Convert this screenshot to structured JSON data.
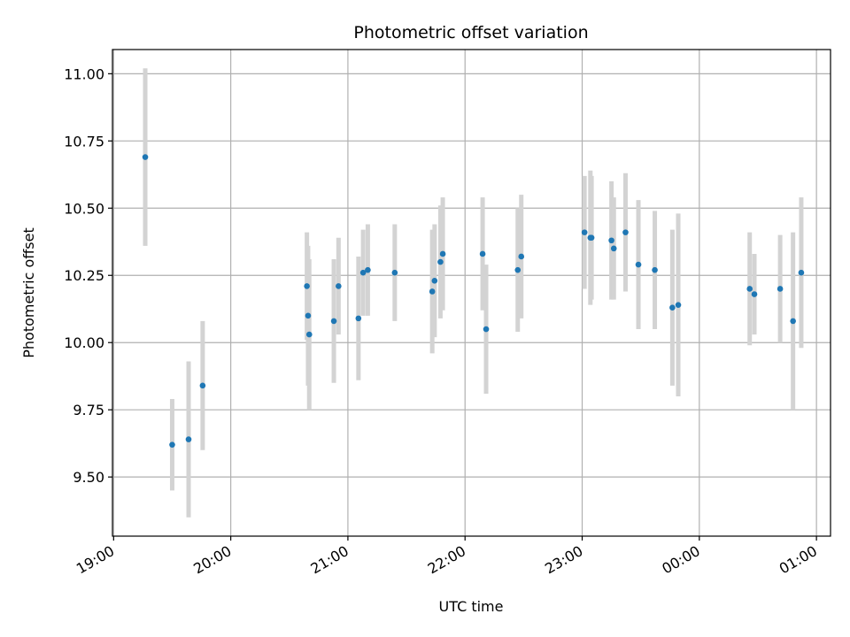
{
  "chart_data": {
    "type": "scatter",
    "title": "Photometric offset variation",
    "xlabel": "UTC time",
    "ylabel": "Photometric offset",
    "x_unit": "UTC time (hours)",
    "xlim": [
      18.99,
      25.12
    ],
    "ylim": [
      9.28,
      11.09
    ],
    "grid": true,
    "x_ticks": [
      {
        "value": 19,
        "label": "19:00"
      },
      {
        "value": 20,
        "label": "20:00"
      },
      {
        "value": 21,
        "label": "21:00"
      },
      {
        "value": 22,
        "label": "22:00"
      },
      {
        "value": 23,
        "label": "23:00"
      },
      {
        "value": 24,
        "label": "00:00"
      },
      {
        "value": 25,
        "label": "01:00"
      }
    ],
    "y_ticks": [
      {
        "value": 9.5,
        "label": "9.50"
      },
      {
        "value": 9.75,
        "label": "9.75"
      },
      {
        "value": 10.0,
        "label": "10.00"
      },
      {
        "value": 10.25,
        "label": "10.25"
      },
      {
        "value": 10.5,
        "label": "10.50"
      },
      {
        "value": 10.75,
        "label": "10.75"
      },
      {
        "value": 11.0,
        "label": "11.00"
      }
    ],
    "colors": {
      "points": "#1f77b4",
      "error_bars": "#d3d3d3",
      "grid": "#b0b0b0"
    },
    "series": [
      {
        "points": [
          {
            "x": 19.27,
            "y": 10.69,
            "err": 0.33
          },
          {
            "x": 19.5,
            "y": 9.62,
            "err": 0.17
          },
          {
            "x": 19.64,
            "y": 9.64,
            "err": 0.29
          },
          {
            "x": 19.76,
            "y": 9.84,
            "err": 0.24
          },
          {
            "x": 20.65,
            "y": 10.21,
            "err": 0.2
          },
          {
            "x": 20.66,
            "y": 10.1,
            "err": 0.26
          },
          {
            "x": 20.67,
            "y": 10.03,
            "err": 0.28
          },
          {
            "x": 20.88,
            "y": 10.08,
            "err": 0.23
          },
          {
            "x": 20.92,
            "y": 10.21,
            "err": 0.18
          },
          {
            "x": 21.09,
            "y": 10.09,
            "err": 0.23
          },
          {
            "x": 21.13,
            "y": 10.26,
            "err": 0.16
          },
          {
            "x": 21.17,
            "y": 10.27,
            "err": 0.17
          },
          {
            "x": 21.4,
            "y": 10.26,
            "err": 0.18
          },
          {
            "x": 21.72,
            "y": 10.19,
            "err": 0.23
          },
          {
            "x": 21.74,
            "y": 10.23,
            "err": 0.21
          },
          {
            "x": 21.79,
            "y": 10.3,
            "err": 0.21
          },
          {
            "x": 21.81,
            "y": 10.33,
            "err": 0.21
          },
          {
            "x": 22.15,
            "y": 10.33,
            "err": 0.21
          },
          {
            "x": 22.18,
            "y": 10.05,
            "err": 0.24
          },
          {
            "x": 22.45,
            "y": 10.27,
            "err": 0.23
          },
          {
            "x": 22.48,
            "y": 10.32,
            "err": 0.23
          },
          {
            "x": 23.02,
            "y": 10.41,
            "err": 0.21
          },
          {
            "x": 23.07,
            "y": 10.39,
            "err": 0.25
          },
          {
            "x": 23.08,
            "y": 10.39,
            "err": 0.23
          },
          {
            "x": 23.25,
            "y": 10.38,
            "err": 0.22
          },
          {
            "x": 23.27,
            "y": 10.35,
            "err": 0.19
          },
          {
            "x": 23.37,
            "y": 10.41,
            "err": 0.22
          },
          {
            "x": 23.48,
            "y": 10.29,
            "err": 0.24
          },
          {
            "x": 23.62,
            "y": 10.27,
            "err": 0.22
          },
          {
            "x": 23.77,
            "y": 10.13,
            "err": 0.29
          },
          {
            "x": 23.82,
            "y": 10.14,
            "err": 0.34
          },
          {
            "x": 24.43,
            "y": 10.2,
            "err": 0.21
          },
          {
            "x": 24.47,
            "y": 10.18,
            "err": 0.15
          },
          {
            "x": 24.69,
            "y": 10.2,
            "err": 0.2
          },
          {
            "x": 24.8,
            "y": 10.08,
            "err": 0.33
          },
          {
            "x": 24.87,
            "y": 10.26,
            "err": 0.28
          }
        ]
      }
    ]
  }
}
